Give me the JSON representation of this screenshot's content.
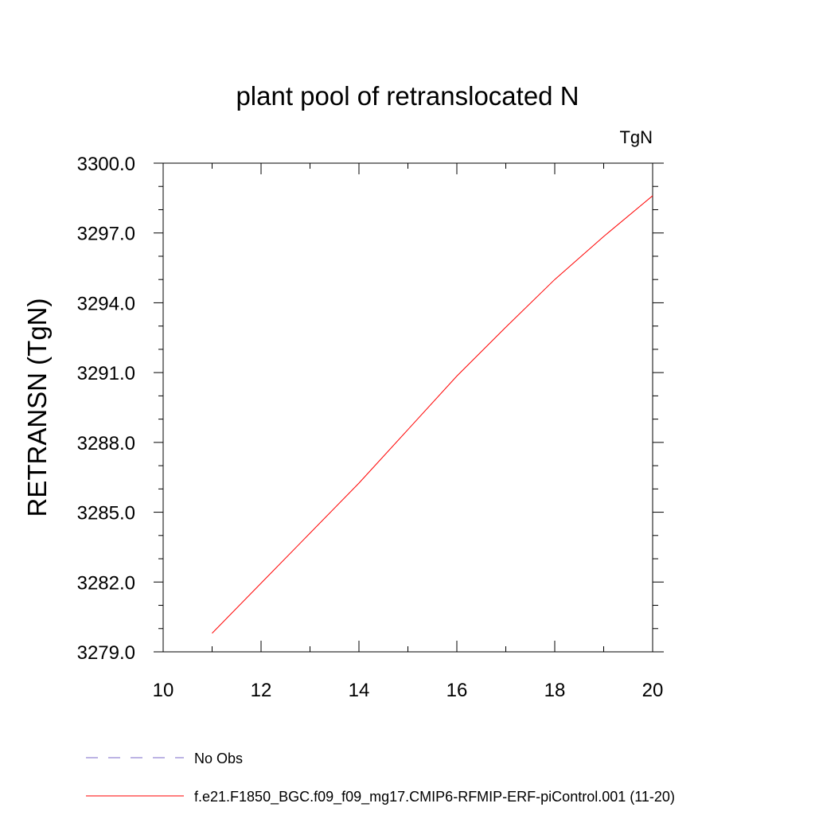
{
  "chart_data": {
    "type": "line",
    "title": "plant pool of retranslocated N",
    "units_label": "TgN",
    "ylabel": "RETRANSN  (TgN)",
    "xlabel": "",
    "xlim": [
      10,
      20
    ],
    "ylim": [
      3279.0,
      3300.0
    ],
    "x_ticks": [
      10,
      12,
      14,
      16,
      18,
      20
    ],
    "x_tick_labels": [
      "10",
      "12",
      "14",
      "16",
      "18",
      "20"
    ],
    "y_ticks": [
      3279.0,
      3282.0,
      3285.0,
      3288.0,
      3291.0,
      3294.0,
      3297.0,
      3300.0
    ],
    "y_tick_labels": [
      "3279.0",
      "3282.0",
      "3285.0",
      "3288.0",
      "3291.0",
      "3294.0",
      "3297.0",
      "3300.0"
    ],
    "grid": false,
    "legend_position": "bottom",
    "series": [
      {
        "name": "No Obs",
        "color": "#7b68c8",
        "dash": "dashed",
        "x": [],
        "y": []
      },
      {
        "name": "f.e21.F1850_BGC.f09_f09_mg17.CMIP6-RFMIP-ERF-piControl.001 (11-20)",
        "color": "#ff0000",
        "dash": "solid",
        "x": [
          11,
          12,
          13,
          14,
          15,
          16,
          17,
          18,
          19,
          20
        ],
        "y": [
          3279.8,
          3281.95,
          3284.1,
          3286.25,
          3288.55,
          3290.85,
          3292.95,
          3295.0,
          3296.85,
          3298.6
        ]
      }
    ]
  }
}
